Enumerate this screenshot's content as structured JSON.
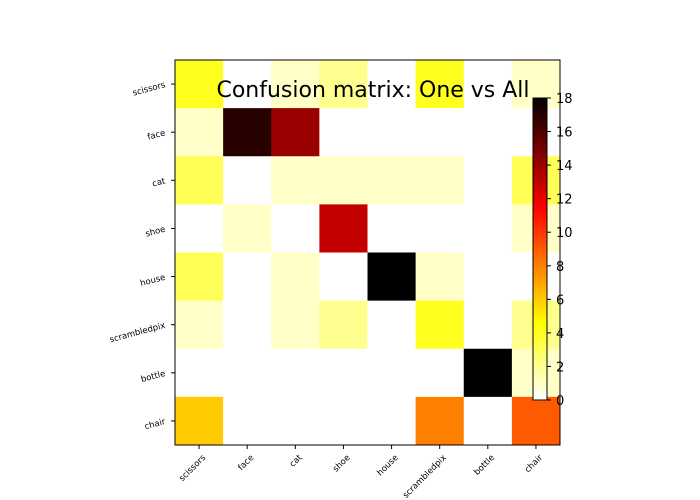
{
  "chart_data": {
    "type": "heatmap",
    "title": "Confusion matrix: One vs All",
    "xlabel": "",
    "ylabel": "",
    "x_categories": [
      "scissors",
      "face",
      "cat",
      "shoe",
      "house",
      "scrambledpix",
      "bottle",
      "chair"
    ],
    "y_categories": [
      "scissors",
      "face",
      "cat",
      "shoe",
      "house",
      "scrambledpix",
      "bottle",
      "chair"
    ],
    "values": [
      [
        4,
        0,
        1,
        2,
        0,
        4,
        0,
        1
      ],
      [
        1,
        17,
        14,
        0,
        0,
        0,
        0,
        0
      ],
      [
        3,
        0,
        1,
        1,
        1,
        1,
        0,
        3
      ],
      [
        0,
        1,
        0,
        13,
        0,
        0,
        0,
        1
      ],
      [
        3,
        0,
        1,
        0,
        18,
        1,
        0,
        0
      ],
      [
        1,
        0,
        1,
        2,
        0,
        4,
        0,
        2
      ],
      [
        0,
        0,
        0,
        0,
        0,
        0,
        18,
        1
      ],
      [
        6,
        0,
        0,
        0,
        0,
        8,
        0,
        9
      ]
    ],
    "colormap": "hot_r",
    "colorbar": {
      "min": 0,
      "max": 18,
      "ticks": [
        "0",
        "2",
        "4",
        "6",
        "8",
        "10",
        "12",
        "14",
        "16",
        "18"
      ]
    },
    "grid": false
  }
}
